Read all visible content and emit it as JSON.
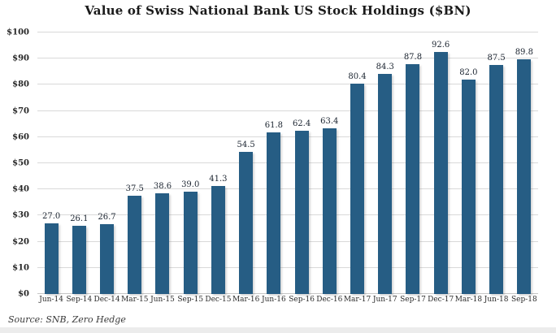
{
  "title": "Value of Swiss National Bank US Stock Holdings ($BN)",
  "source": "Source: SNB, Zero Hedge",
  "colors": {
    "bar": "#265d84",
    "gridline": "#d9d9d9",
    "title_text": "#1a1a1a",
    "value_label_text": "#1b2430"
  },
  "chart_data": {
    "type": "bar",
    "title": "Value of Swiss National Bank US Stock Holdings ($BN)",
    "categories": [
      "Jun-14",
      "Sep-14",
      "Dec-14",
      "Mar-15",
      "Jun-15",
      "Sep-15",
      "Dec-15",
      "Mar-16",
      "Jun-16",
      "Sep-16",
      "Dec-16",
      "Mar-17",
      "Jun-17",
      "Sep-17",
      "Dec-17",
      "Mar-18",
      "Jun-18",
      "Sep-18"
    ],
    "values": [
      27.0,
      26.1,
      26.7,
      37.5,
      38.6,
      39.0,
      41.3,
      54.5,
      61.8,
      62.4,
      63.4,
      80.4,
      84.3,
      87.8,
      92.6,
      82.0,
      87.5,
      89.8
    ],
    "value_labels": [
      "27.0",
      "26.1",
      "26.7",
      "37.5",
      "38.6",
      "39.0",
      "41.3",
      "54.5",
      "61.8",
      "62.4",
      "63.4",
      "80.4",
      "84.3",
      "87.8",
      "92.6",
      "82.0",
      "87.5",
      "89.8"
    ],
    "xlabel": "",
    "ylabel": "",
    "ylim": [
      0,
      100
    ],
    "ytick_values": [
      0,
      10,
      20,
      30,
      40,
      50,
      60,
      70,
      80,
      90,
      100
    ],
    "ytick_labels": [
      "$0",
      "$10",
      "$20",
      "$30",
      "$40",
      "$50",
      "$60",
      "$70",
      "$80",
      "$90",
      "$100"
    ],
    "grid": "horizontal",
    "legend": "none",
    "source": "Source: SNB, Zero Hedge"
  }
}
